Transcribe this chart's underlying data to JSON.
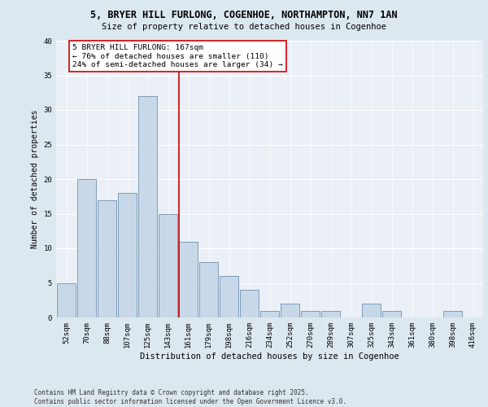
{
  "title1": "5, BRYER HILL FURLONG, COGENHOE, NORTHAMPTON, NN7 1AN",
  "title2": "Size of property relative to detached houses in Cogenhoe",
  "xlabel": "Distribution of detached houses by size in Cogenhoe",
  "ylabel": "Number of detached properties",
  "categories": [
    "52sqm",
    "70sqm",
    "88sqm",
    "107sqm",
    "125sqm",
    "143sqm",
    "161sqm",
    "179sqm",
    "198sqm",
    "216sqm",
    "234sqm",
    "252sqm",
    "270sqm",
    "289sqm",
    "307sqm",
    "325sqm",
    "343sqm",
    "361sqm",
    "380sqm",
    "398sqm",
    "416sqm"
  ],
  "values": [
    5,
    20,
    17,
    18,
    32,
    15,
    11,
    8,
    6,
    4,
    1,
    2,
    1,
    1,
    0,
    2,
    1,
    0,
    0,
    1,
    0
  ],
  "bar_color": "#c8d8e8",
  "bar_edge_color": "#7090b0",
  "vline_color": "#cc0000",
  "annotation_text": "5 BRYER HILL FURLONG: 167sqm\n← 76% of detached houses are smaller (110)\n24% of semi-detached houses are larger (34) →",
  "annotation_box_color": "#ffffff",
  "annotation_box_edge": "#cc0000",
  "bg_color": "#dce8f0",
  "plot_bg_color": "#eaf0f6",
  "grid_color": "#ffffff",
  "ylim": [
    0,
    40
  ],
  "yticks": [
    0,
    5,
    10,
    15,
    20,
    25,
    30,
    35,
    40
  ],
  "title1_fontsize": 8.5,
  "title2_fontsize": 7.5,
  "xlabel_fontsize": 7.5,
  "ylabel_fontsize": 7,
  "tick_fontsize": 6.5,
  "annotation_fontsize": 6.8,
  "footer_fontsize": 5.5,
  "footer": "Contains HM Land Registry data © Crown copyright and database right 2025.\nContains public sector information licensed under the Open Government Licence v3.0."
}
